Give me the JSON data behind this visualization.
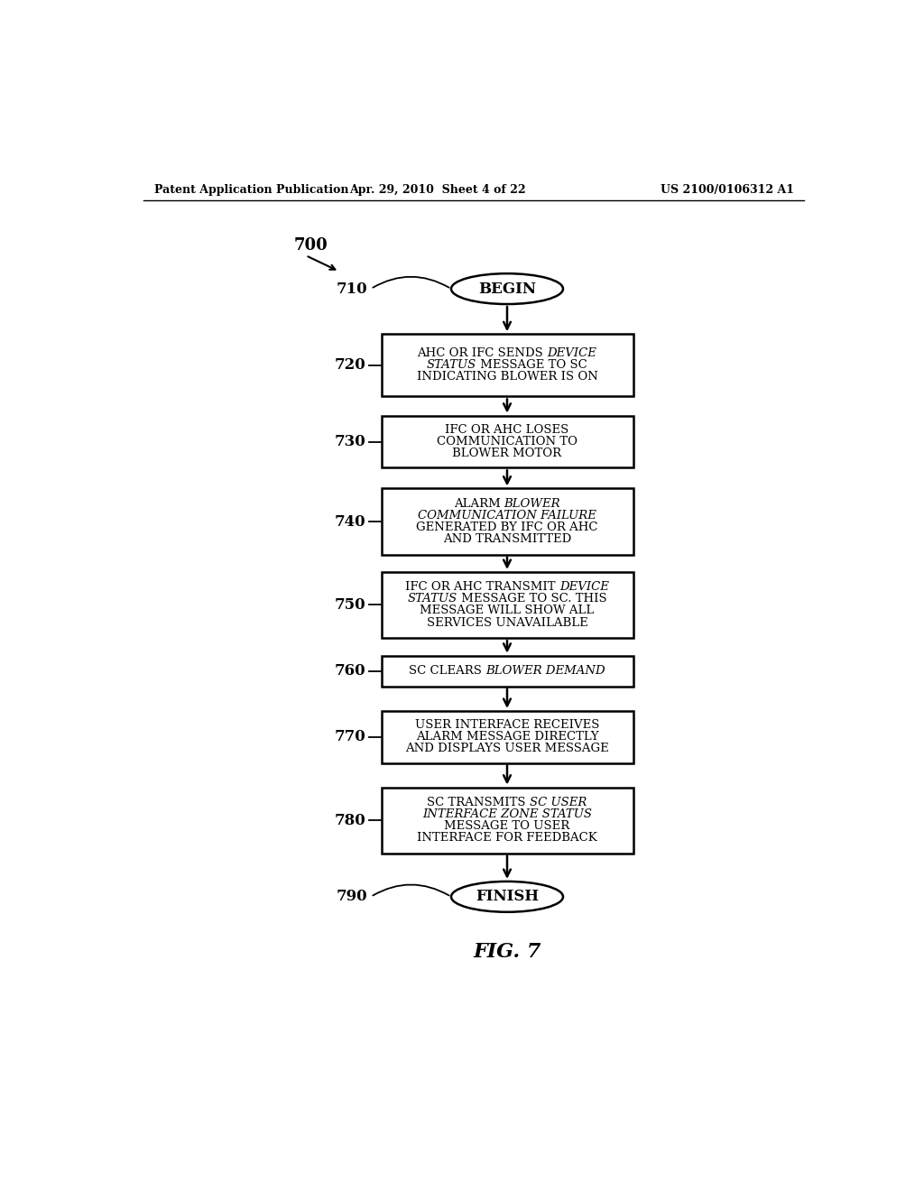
{
  "header_left": "Patent Application Publication",
  "header_center": "Apr. 29, 2010  Sheet 4 of 22",
  "header_right": "US 2100/0106312 A1",
  "fig_label": "FIG. 7",
  "diagram_label": "700",
  "nodes": [
    {
      "id": "710",
      "type": "oval",
      "lines": [
        [
          {
            "text": "BEGIN",
            "italic": false,
            "bold": false
          }
        ]
      ]
    },
    {
      "id": "720",
      "type": "rect",
      "lines": [
        [
          {
            "text": "AHC OR IFC SENDS ",
            "italic": false
          },
          {
            "text": "DEVICE",
            "italic": true
          }
        ],
        [
          {
            "text": "STATUS",
            "italic": true
          },
          {
            "text": " MESSAGE TO SC",
            "italic": false
          }
        ],
        [
          {
            "text": "INDICATING BLOWER IS ON",
            "italic": false
          }
        ]
      ]
    },
    {
      "id": "730",
      "type": "rect",
      "lines": [
        [
          {
            "text": "IFC OR AHC LOSES",
            "italic": false
          }
        ],
        [
          {
            "text": "COMMUNICATION TO",
            "italic": false
          }
        ],
        [
          {
            "text": "BLOWER MOTOR",
            "italic": false
          }
        ]
      ]
    },
    {
      "id": "740",
      "type": "rect",
      "lines": [
        [
          {
            "text": "ALARM ",
            "italic": false
          },
          {
            "text": "BLOWER",
            "italic": true
          }
        ],
        [
          {
            "text": "COMMUNICATION FAILURE",
            "italic": true
          }
        ],
        [
          {
            "text": "GENERATED BY IFC OR AHC",
            "italic": false
          }
        ],
        [
          {
            "text": "AND TRANSMITTED",
            "italic": false
          }
        ]
      ]
    },
    {
      "id": "750",
      "type": "rect",
      "lines": [
        [
          {
            "text": "IFC OR AHC TRANSMIT ",
            "italic": false
          },
          {
            "text": "DEVICE",
            "italic": true
          }
        ],
        [
          {
            "text": "STATUS",
            "italic": true
          },
          {
            "text": " MESSAGE TO SC. THIS",
            "italic": false
          }
        ],
        [
          {
            "text": "MESSAGE WILL SHOW ALL",
            "italic": false
          }
        ],
        [
          {
            "text": "SERVICES UNAVAILABLE",
            "italic": false
          }
        ]
      ]
    },
    {
      "id": "760",
      "type": "rect",
      "lines": [
        [
          {
            "text": "SC CLEARS ",
            "italic": false
          },
          {
            "text": "BLOWER DEMAND",
            "italic": true
          }
        ]
      ]
    },
    {
      "id": "770",
      "type": "rect",
      "lines": [
        [
          {
            "text": "USER INTERFACE RECEIVES",
            "italic": false
          }
        ],
        [
          {
            "text": "ALARM MESSAGE DIRECTLY",
            "italic": false
          }
        ],
        [
          {
            "text": "AND DISPLAYS USER MESSAGE",
            "italic": false
          }
        ]
      ]
    },
    {
      "id": "780",
      "type": "rect",
      "lines": [
        [
          {
            "text": "SC TRANSMITS ",
            "italic": false
          },
          {
            "text": "SC USER",
            "italic": true
          }
        ],
        [
          {
            "text": "INTERFACE ZONE STATUS",
            "italic": true
          }
        ],
        [
          {
            "text": "MESSAGE TO USER",
            "italic": false
          }
        ],
        [
          {
            "text": "INTERFACE FOR FEEDBACK",
            "italic": false
          }
        ]
      ]
    },
    {
      "id": "790",
      "type": "oval",
      "lines": [
        [
          {
            "text": "FINISH",
            "italic": false
          }
        ]
      ]
    }
  ],
  "background_color": "#ffffff",
  "box_edge_color": "#000000",
  "text_color": "#000000",
  "arrow_color": "#000000"
}
